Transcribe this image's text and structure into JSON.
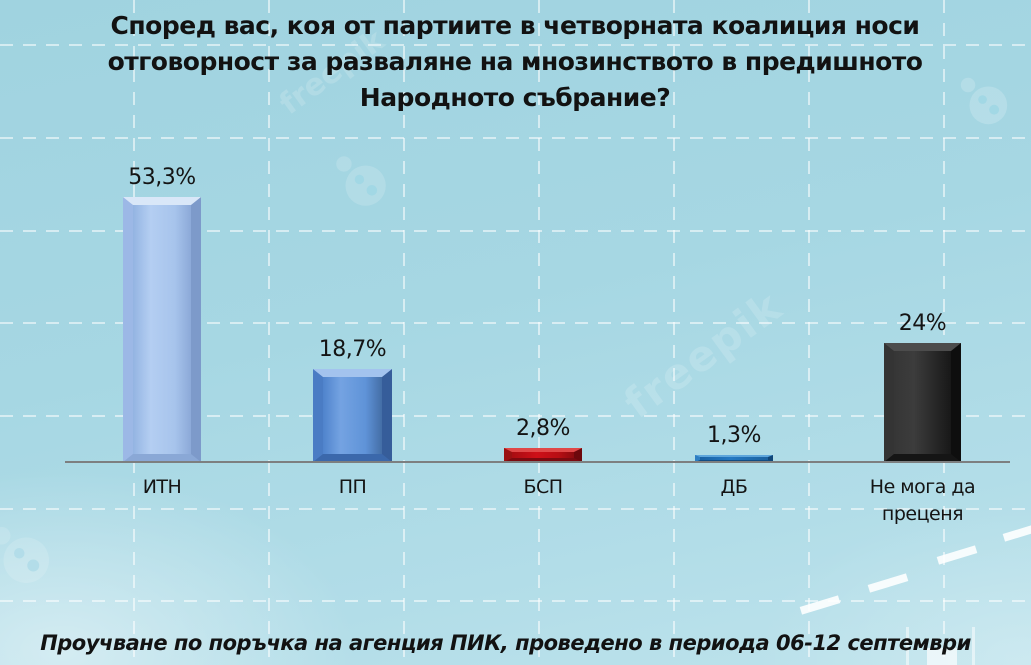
{
  "chart_data": {
    "type": "bar",
    "title": "Според вас, коя от партиите в четворната коалиция носи отговорност за разваляне на мнозинството в предишното Народното събрание?",
    "categories": [
      "ИТН",
      "ПП",
      "БСП",
      "ДБ",
      "Не мога да преценя"
    ],
    "values": [
      53.3,
      18.7,
      2.8,
      1.3,
      24
    ],
    "value_labels": [
      "53,3%",
      "18,7%",
      "2,8%",
      "1,3%",
      "24%"
    ],
    "bar_colors": [
      "#a7c4ec",
      "#5f93d8",
      "#b80e14",
      "#2478c2",
      "#262626"
    ],
    "xlabel": "",
    "ylabel": "",
    "ylim": [
      0,
      60
    ],
    "grid": true,
    "legend_position": "none",
    "caption": "Проучване по поръчка на агенция ПИК, проведено в периода 06-12 септември"
  },
  "background": {
    "base_color": "#a6d7e3",
    "grid_line_color": "#ffffff",
    "axis_color": "#7d7f80"
  },
  "watermark": {
    "text": "freepik",
    "logo": "freepik-ladybug-icon"
  }
}
